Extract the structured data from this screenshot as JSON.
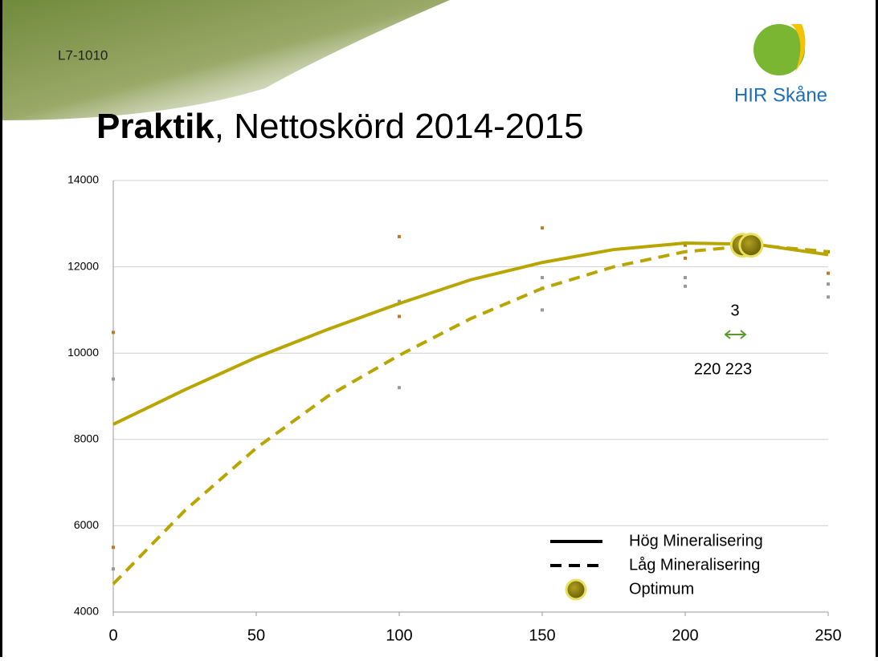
{
  "chart_data": {
    "type": "line",
    "header": "L7-1010",
    "logo": "HIR Skåne",
    "title": {
      "bold": "Praktik",
      "rest": ", Nettoskörd 2014-2015"
    },
    "xlim": [
      0,
      250
    ],
    "xticks": [
      0,
      50,
      100,
      150,
      200,
      250
    ],
    "ylim": [
      4000,
      14000
    ],
    "yticks": [
      4000,
      6000,
      8000,
      10000,
      12000,
      14000
    ],
    "grid": true,
    "series": [
      {
        "name": "Hög Mineralisering",
        "color": "#b8a500",
        "dash": false,
        "x": [
          0,
          25,
          50,
          75,
          100,
          125,
          150,
          175,
          200,
          225,
          250
        ],
        "values": [
          8350,
          9150,
          9900,
          10550,
          11150,
          11700,
          12100,
          12400,
          12550,
          12520,
          12280
        ]
      },
      {
        "name": "Låg Mineralisering",
        "color": "#b8a500",
        "dash": true,
        "x": [
          0,
          25,
          50,
          75,
          100,
          125,
          150,
          175,
          200,
          225,
          250
        ],
        "values": [
          4650,
          6350,
          7800,
          9000,
          9950,
          10800,
          11500,
          12000,
          12350,
          12500,
          12350
        ]
      },
      {
        "name": "Optimum",
        "color": "#8a7d00",
        "marker": true,
        "x": [
          220,
          223
        ],
        "values": [
          12500,
          12500
        ]
      }
    ],
    "scatter": [
      {
        "color": "#c07a20",
        "x": [
          0,
          0,
          100,
          100,
          150,
          150,
          200,
          200,
          250,
          250
        ],
        "values": [
          10480,
          5500,
          12700,
          10850,
          12900,
          11500,
          12500,
          12200,
          12350,
          11850
        ]
      },
      {
        "color": "#999999",
        "x": [
          0,
          0,
          100,
          100,
          150,
          150,
          200,
          200,
          250,
          250
        ],
        "values": [
          9400,
          5000,
          11200,
          9200,
          11750,
          11000,
          11750,
          11550,
          11600,
          11300
        ]
      }
    ],
    "annotations": [
      "3",
      "220 223"
    ]
  }
}
